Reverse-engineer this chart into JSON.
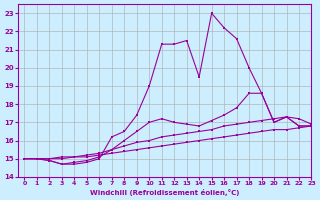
{
  "xlabel": "Windchill (Refroidissement éolien,°C)",
  "ylabel": "",
  "bg_color": "#cceeff",
  "line_color": "#990099",
  "grid_color": "#aaaaaa",
  "xlim": [
    -0.5,
    23
  ],
  "ylim": [
    14,
    23.5
  ],
  "xticks": [
    0,
    1,
    2,
    3,
    4,
    5,
    6,
    7,
    8,
    9,
    10,
    11,
    12,
    13,
    14,
    15,
    16,
    17,
    18,
    19,
    20,
    21,
    22,
    23
  ],
  "yticks": [
    14,
    15,
    16,
    17,
    18,
    19,
    20,
    21,
    22,
    23
  ],
  "series": [
    [
      15.0,
      15.0,
      14.9,
      14.7,
      14.7,
      14.8,
      15.0,
      16.2,
      16.5,
      17.4,
      19.0,
      21.3,
      21.3,
      21.5,
      19.5,
      23.0,
      22.2,
      21.6,
      20.0,
      18.6,
      17.0,
      17.3,
      16.8,
      16.8
    ],
    [
      15.0,
      15.0,
      14.9,
      14.7,
      14.8,
      14.9,
      15.1,
      15.5,
      16.0,
      16.5,
      17.0,
      17.2,
      17.0,
      16.9,
      16.8,
      17.1,
      17.4,
      17.8,
      18.6,
      18.6,
      17.0,
      17.3,
      16.8,
      16.8
    ],
    [
      15.0,
      15.0,
      15.0,
      15.1,
      15.1,
      15.2,
      15.3,
      15.5,
      15.7,
      15.9,
      16.0,
      16.2,
      16.3,
      16.4,
      16.5,
      16.6,
      16.8,
      16.9,
      17.0,
      17.1,
      17.2,
      17.3,
      17.2,
      16.9
    ],
    [
      15.0,
      15.0,
      15.0,
      15.0,
      15.1,
      15.1,
      15.2,
      15.3,
      15.4,
      15.5,
      15.6,
      15.7,
      15.8,
      15.9,
      16.0,
      16.1,
      16.2,
      16.3,
      16.4,
      16.5,
      16.6,
      16.6,
      16.7,
      16.8
    ]
  ]
}
